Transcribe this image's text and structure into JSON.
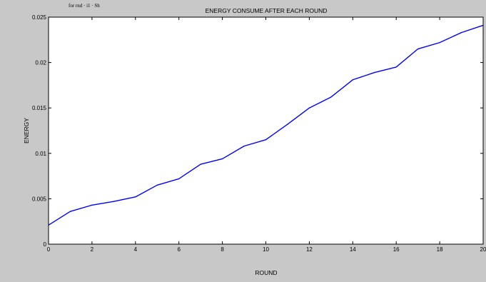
{
  "colors": {
    "figure_background": "#c8c8c8",
    "plot_background": "#ffffff",
    "axis": "#000000",
    "line": "#0000ff",
    "artifact_text": "#3a3aa0"
  },
  "top_left_artifact": "for rnd · i1 · Sh",
  "chart_data": {
    "type": "line",
    "title": "ENERGY CONSUME AFTER EACH ROUND",
    "xlabel": "ROUND",
    "ylabel": "ENERGY",
    "xlim": [
      0,
      20
    ],
    "ylim": [
      0,
      0.025
    ],
    "grid": false,
    "x_ticks": [
      0,
      2,
      4,
      6,
      8,
      10,
      12,
      14,
      16,
      18,
      20
    ],
    "x_tick_labels": [
      "0",
      "2",
      "4",
      "6",
      "8",
      "10",
      "12",
      "14",
      "16",
      "18",
      "20"
    ],
    "y_ticks": [
      0,
      0.005,
      0.01,
      0.015,
      0.02,
      0.025
    ],
    "y_tick_labels": [
      "0",
      "0.005",
      "0.01",
      "0.015",
      "0.02",
      "0.025"
    ],
    "series": [
      {
        "x": [
          0,
          1,
          2,
          3,
          4,
          5,
          6,
          7,
          8,
          9,
          10,
          11,
          12,
          13,
          14,
          15,
          16,
          17,
          18,
          19,
          20
        ],
        "values": [
          0.0021,
          0.0036,
          0.0043,
          0.0047,
          0.0052,
          0.0065,
          0.0072,
          0.0088,
          0.0094,
          0.0108,
          0.0115,
          0.0132,
          0.015,
          0.0162,
          0.0181,
          0.0189,
          0.0195,
          0.0215,
          0.0222,
          0.0233,
          0.0241
        ],
        "color": "#0000ff"
      }
    ]
  }
}
